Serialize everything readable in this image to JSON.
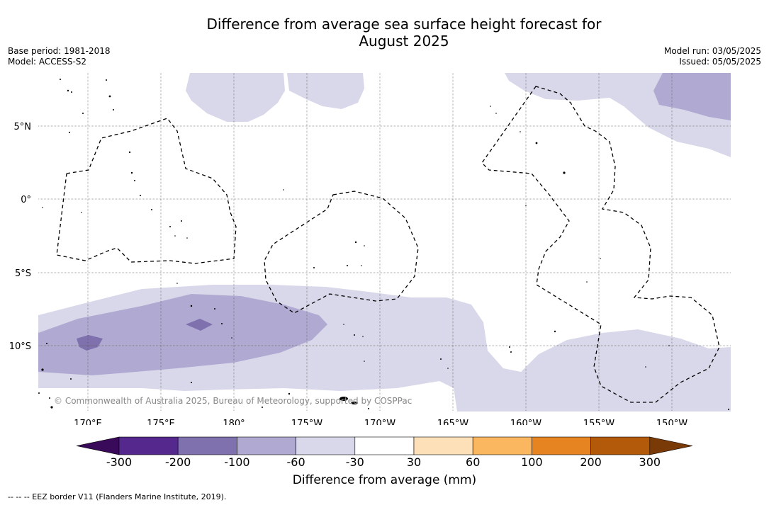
{
  "title_line1": "Difference from average sea surface height forecast for",
  "title_line2": "August 2025",
  "meta_left": {
    "base_period": "Base period: 1981-2018",
    "model": "Model: ACCESS-S2"
  },
  "meta_right": {
    "model_run": "Model run: 03/05/2025",
    "issued": "Issued: 05/05/2025"
  },
  "map": {
    "lon_ticks": [
      "170°E",
      "175°E",
      "180°",
      "175°W",
      "170°W",
      "165°W",
      "160°W",
      "155°W",
      "150°W"
    ],
    "lat_ticks": [
      "5°N",
      "0°",
      "5°S",
      "10°S"
    ],
    "copyright": "© Commonwealth of Australia 2025, Bureau of Meteorology, supported by COSPPac",
    "colors": {
      "c_m60_m30": "#d8d8ea",
      "c_m100_m60": "#b0aad2",
      "c_m200_m100": "#7f70ae",
      "c_m300_m200": "#54288c",
      "c_below": "#3a0a5a"
    }
  },
  "colorbar": {
    "title": "Difference from average (mm)",
    "tick_labels": [
      "-300",
      "-200",
      "-100",
      "-60",
      "-30",
      "30",
      "60",
      "100",
      "200",
      "300"
    ],
    "bins": [
      {
        "color": "#54288c"
      },
      {
        "color": "#7f70ae"
      },
      {
        "color": "#b0aad2"
      },
      {
        "color": "#d8d8ea"
      },
      {
        "color": "#ffffff"
      },
      {
        "color": "#fde0b8"
      },
      {
        "color": "#fbb660"
      },
      {
        "color": "#e58420"
      },
      {
        "color": "#b35a0a"
      }
    ],
    "under_color": "#3a0a5a",
    "over_color": "#7a3a08"
  },
  "footer": "--  --  -- EEZ border V11 (Flanders Marine Institute, 2019)."
}
